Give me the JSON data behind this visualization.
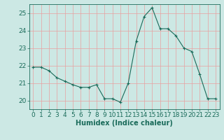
{
  "x": [
    0,
    1,
    2,
    3,
    4,
    5,
    6,
    7,
    8,
    9,
    10,
    11,
    12,
    13,
    14,
    15,
    16,
    17,
    18,
    19,
    20,
    21,
    22,
    23
  ],
  "y": [
    21.9,
    21.9,
    21.7,
    21.3,
    21.1,
    20.9,
    20.75,
    20.75,
    20.9,
    20.1,
    20.1,
    19.9,
    21.0,
    23.4,
    24.8,
    25.3,
    24.1,
    24.1,
    23.7,
    23.0,
    22.8,
    21.5,
    20.1,
    20.1
  ],
  "line_color": "#1a6b5a",
  "marker": "+",
  "marker_size": 3,
  "bg_color": "#cce8e4",
  "grid_color": "#e8a0a0",
  "axis_color": "#1a6b5a",
  "xlabel": "Humidex (Indice chaleur)",
  "xlim": [
    -0.5,
    23.5
  ],
  "ylim": [
    19.5,
    25.5
  ],
  "yticks": [
    20,
    21,
    22,
    23,
    24,
    25
  ],
  "xticks": [
    0,
    1,
    2,
    3,
    4,
    5,
    6,
    7,
    8,
    9,
    10,
    11,
    12,
    13,
    14,
    15,
    16,
    17,
    18,
    19,
    20,
    21,
    22,
    23
  ],
  "xlabel_fontsize": 7,
  "tick_fontsize": 6.5
}
